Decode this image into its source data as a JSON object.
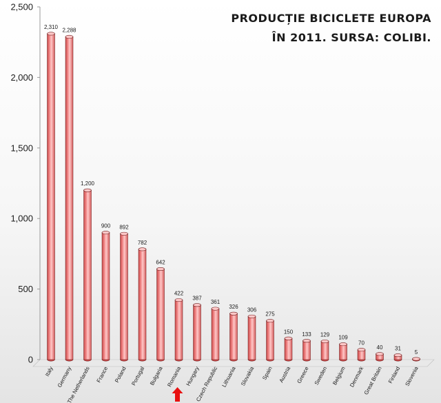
{
  "title_lines": [
    "PRODUCȚIE BICICLETE EUROPA",
    "ÎN 2011. SURSA: COLIBI."
  ],
  "colors": {
    "bar": "#f08585",
    "bar_dark": "#c94a4a",
    "bar_light": "#ffc8c8",
    "bar_edge": "#6a1a1a",
    "arrow": "#e81010",
    "floor": "#e9e9e9"
  },
  "chart_data": {
    "type": "bar",
    "title": "PRODUCȚIE BICICLETE EUROPA ÎN 2011. SURSA: COLIBI.",
    "categories": [
      "Italy",
      "Germany",
      "The Netherlands",
      "France",
      "Poland",
      "Portugal",
      "Bulgaria",
      "Romania",
      "Hungary",
      "Czech Republic",
      "Lithuania",
      "Slovakia",
      "Spain",
      "Austria",
      "Greece",
      "Sweden",
      "Belgium",
      "Denmark",
      "Great Britain",
      "Finland",
      "Slovenia"
    ],
    "values": [
      2310,
      2288,
      1200,
      900,
      892,
      782,
      642,
      422,
      387,
      361,
      326,
      306,
      275,
      150,
      133,
      129,
      109,
      70,
      40,
      31,
      5
    ],
    "data_labels": [
      "2,310",
      "2,288",
      "1,200",
      "900",
      "892",
      "782",
      "642",
      "422",
      "387",
      "361",
      "326",
      "306",
      "275",
      "150",
      "133",
      "129",
      "109",
      "70",
      "40",
      "31",
      "5"
    ],
    "ylim": [
      0,
      2500
    ],
    "yticks": [
      0,
      500,
      1000,
      1500,
      2000,
      2500
    ],
    "ytick_labels": [
      "0",
      "500",
      "1,000",
      "1,500",
      "2,000",
      "2,500"
    ],
    "xlabel": "",
    "ylabel": "",
    "grid": false,
    "legend": "none",
    "highlight_category": "Romania",
    "highlight_marker": "up-arrow"
  }
}
